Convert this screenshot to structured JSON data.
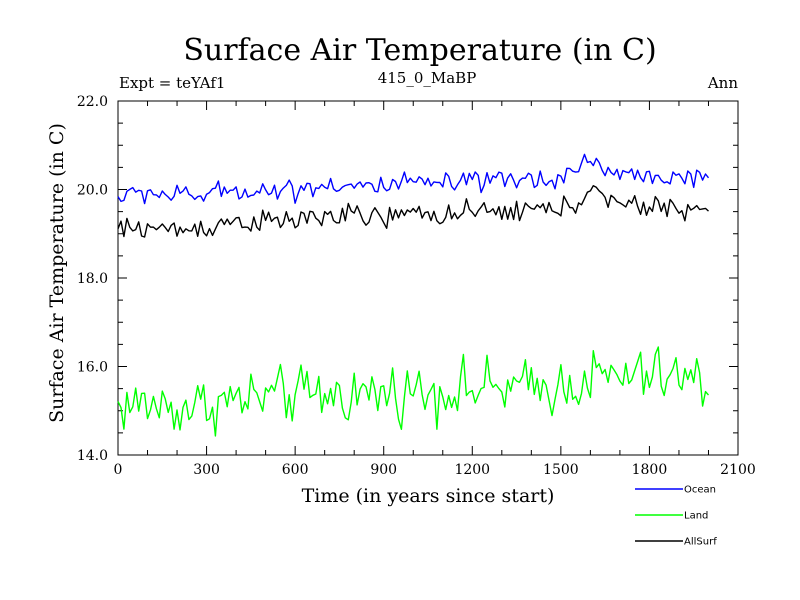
{
  "chart_data": {
    "type": "line",
    "title": "Surface Air Temperature (in C)",
    "left_label": "Expt = teYAf1",
    "center_label": "415_0_MaBP",
    "right_label": "Ann",
    "xlabel": "Time (in years since start)",
    "ylabel": "Surface Air Temperature (in C)",
    "xlim": [
      0,
      2100
    ],
    "ylim": [
      14.0,
      22.0
    ],
    "x_ticks": [
      0,
      300,
      600,
      900,
      1200,
      1500,
      1800,
      2100
    ],
    "x_tick_labels": [
      "0",
      "300",
      "600",
      "900",
      "1200",
      "1500",
      "1800",
      "2100"
    ],
    "y_ticks": [
      14.0,
      16.0,
      18.0,
      20.0,
      22.0
    ],
    "y_tick_labels": [
      "14.0",
      "16.0",
      "18.0",
      "20.0",
      "22.0"
    ],
    "x_minor_step": 100,
    "y_minor_step": 0.5,
    "legend_position": "bottom-right",
    "noise_step_years": 10,
    "series": [
      {
        "name": "Ocean",
        "color": "#0000ff",
        "noise_amplitude": 0.12,
        "x": [
          0,
          100,
          200,
          300,
          400,
          500,
          600,
          700,
          800,
          900,
          1000,
          1100,
          1200,
          1300,
          1400,
          1500,
          1560,
          1600,
          1650,
          1700,
          1800,
          1900,
          2000
        ],
        "values": [
          19.82,
          19.95,
          19.85,
          19.88,
          20.0,
          19.98,
          20.0,
          20.12,
          20.08,
          20.05,
          20.15,
          20.12,
          20.15,
          20.18,
          20.22,
          20.28,
          20.45,
          20.8,
          20.4,
          20.35,
          20.3,
          20.3,
          20.15
        ]
      },
      {
        "name": "Land",
        "color": "#00ff00",
        "noise_amplitude": 0.32,
        "x": [
          0,
          100,
          200,
          300,
          400,
          500,
          600,
          700,
          800,
          900,
          1000,
          1100,
          1200,
          1300,
          1400,
          1500,
          1600,
          1700,
          1800,
          1900,
          2000
        ],
        "values": [
          15.1,
          15.15,
          15.05,
          15.15,
          15.25,
          15.3,
          15.35,
          15.35,
          15.38,
          15.4,
          15.45,
          15.45,
          15.5,
          15.5,
          15.5,
          15.55,
          15.75,
          15.75,
          15.8,
          15.75,
          15.6
        ]
      },
      {
        "name": "AllSurf",
        "color": "#000000",
        "noise_amplitude": 0.13,
        "x": [
          0,
          100,
          200,
          300,
          400,
          500,
          600,
          700,
          800,
          900,
          1000,
          1100,
          1200,
          1300,
          1400,
          1500,
          1560,
          1600,
          1650,
          1700,
          1800,
          1900,
          2000
        ],
        "values": [
          19.08,
          19.15,
          19.08,
          19.15,
          19.3,
          19.25,
          19.3,
          19.4,
          19.4,
          19.35,
          19.45,
          19.45,
          19.45,
          19.5,
          19.55,
          19.55,
          19.7,
          20.15,
          19.7,
          19.65,
          19.6,
          19.6,
          19.5
        ]
      }
    ]
  }
}
